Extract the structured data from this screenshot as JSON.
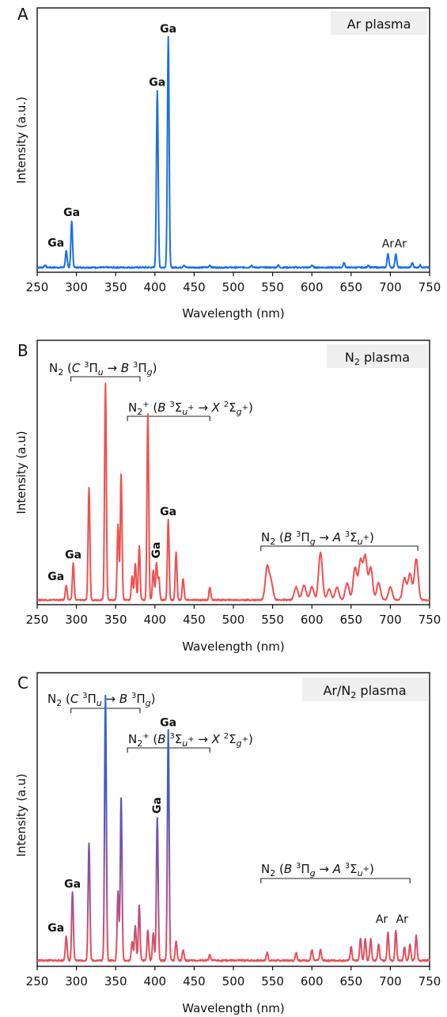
{
  "chart_data": [
    {
      "type": "line",
      "panel_letter": "A",
      "legend_label": "Ar plasma",
      "xlabel": "Wavelength (nm)",
      "ylabel": "Intensity (a.u.)",
      "xlim": [
        250,
        750
      ],
      "xticks": [
        250,
        300,
        350,
        400,
        450,
        500,
        550,
        600,
        650,
        700,
        750
      ],
      "grid": false,
      "series": [
        {
          "color": "#1a6fe8",
          "peaks": [
            [
              260,
              0.01
            ],
            [
              287,
              0.07
            ],
            [
              294,
              0.2
            ],
            [
              403,
              0.76
            ],
            [
              417,
              0.99
            ],
            [
              437,
              0.01
            ],
            [
              470,
              0.01
            ],
            [
              523,
              0.01
            ],
            [
              557,
              0.01
            ],
            [
              600,
              0.01
            ],
            [
              641,
              0.02
            ],
            [
              672,
              0.01
            ],
            [
              697,
              0.06
            ],
            [
              707,
              0.06
            ],
            [
              728,
              0.02
            ],
            [
              738,
              0.01
            ]
          ]
        }
      ],
      "annotations": [
        {
          "text": "Ga",
          "x": 287,
          "bold": true
        },
        {
          "text": "Ga",
          "x": 294,
          "bold": true
        },
        {
          "text": "Ga",
          "x": 403,
          "bold": true
        },
        {
          "text": "Ga",
          "x": 417,
          "bold": true
        },
        {
          "text": "Ar",
          "x": 697,
          "bold": false
        },
        {
          "text": "Ar",
          "x": 713,
          "bold": false
        }
      ]
    },
    {
      "type": "line",
      "panel_letter": "B",
      "legend_label": "N",
      "legend_sub": "2",
      "legend_suffix": " plasma",
      "xlabel": "Wavelength (nm)",
      "ylabel": "Intensity (a.u)",
      "xlim": [
        250,
        750
      ],
      "xticks": [
        250,
        300,
        350,
        400,
        450,
        500,
        550,
        600,
        650,
        700,
        750
      ],
      "grid": false,
      "series": [
        {
          "color": "#f0504f",
          "peaks": [
            [
              287,
              0.07
            ],
            [
              296,
              0.17
            ],
            [
              316,
              0.52
            ],
            [
              337,
              1.0
            ],
            [
              353,
              0.35
            ],
            [
              357,
              0.58
            ],
            [
              371,
              0.11
            ],
            [
              375,
              0.17
            ],
            [
              380,
              0.25
            ],
            [
              391,
              0.86
            ],
            [
              398,
              0.14
            ],
            [
              402,
              0.17
            ],
            [
              405,
              0.1
            ],
            [
              417,
              0.37
            ],
            [
              427,
              0.22
            ],
            [
              436,
              0.1
            ],
            [
              470,
              0.06
            ],
            [
              543,
              0.15
            ],
            [
              548,
              0.08
            ],
            [
              580,
              0.06
            ],
            [
              590,
              0.07
            ],
            [
              600,
              0.06
            ],
            [
              611,
              0.22
            ],
            [
              622,
              0.05
            ],
            [
              632,
              0.06
            ],
            [
              645,
              0.08
            ],
            [
              655,
              0.15
            ],
            [
              662,
              0.18
            ],
            [
              668,
              0.2
            ],
            [
              675,
              0.15
            ],
            [
              685,
              0.08
            ],
            [
              700,
              0.06
            ],
            [
              718,
              0.1
            ],
            [
              725,
              0.12
            ],
            [
              733,
              0.19
            ]
          ]
        }
      ],
      "bands": [
        {
          "x0": 293,
          "x1": 381,
          "label": "N2 (C 3Πu → B 3Πg)"
        },
        {
          "x0": 365,
          "x1": 470,
          "label": "N2+ (B 3Σu+ → X 2Σg+)"
        },
        {
          "x0": 535,
          "x1": 735,
          "label": "N2 (B 3Πg → A 3Σu+)"
        }
      ],
      "annotations": [
        {
          "text": "Ga",
          "x": 287,
          "bold": true
        },
        {
          "text": "Ga",
          "x": 296,
          "bold": true
        },
        {
          "text": "Ga",
          "x": 402,
          "bold": true
        },
        {
          "text": "Ga",
          "x": 417,
          "bold": true
        }
      ]
    },
    {
      "type": "line",
      "panel_letter": "C",
      "legend_label": "Ar/N",
      "legend_sub": "2",
      "legend_suffix": " plasma",
      "xlabel": "Wavelength (nm)",
      "ylabel": "Intensity (a.u)",
      "xlim": [
        250,
        750
      ],
      "xticks": [
        250,
        300,
        350,
        400,
        450,
        500,
        550,
        600,
        650,
        700,
        750
      ],
      "grid": false,
      "series": [
        {
          "color_top": "#1a6fe8",
          "color_bottom": "#f0504f",
          "peaks": [
            [
              287,
              0.09
            ],
            [
              295,
              0.25
            ],
            [
              316,
              0.43
            ],
            [
              337,
              0.97
            ],
            [
              353,
              0.25
            ],
            [
              357,
              0.59
            ],
            [
              371,
              0.07
            ],
            [
              375,
              0.13
            ],
            [
              380,
              0.2
            ],
            [
              391,
              0.11
            ],
            [
              398,
              0.1
            ],
            [
              403,
              0.52
            ],
            [
              417,
              0.84
            ],
            [
              427,
              0.07
            ],
            [
              436,
              0.04
            ],
            [
              470,
              0.02
            ],
            [
              543,
              0.03
            ],
            [
              580,
              0.03
            ],
            [
              600,
              0.04
            ],
            [
              611,
              0.04
            ],
            [
              650,
              0.05
            ],
            [
              662,
              0.08
            ],
            [
              668,
              0.08
            ],
            [
              675,
              0.08
            ],
            [
              685,
              0.06
            ],
            [
              697,
              0.1
            ],
            [
              707,
              0.11
            ],
            [
              718,
              0.05
            ],
            [
              725,
              0.06
            ],
            [
              733,
              0.09
            ]
          ]
        }
      ],
      "bands": [
        {
          "x0": 293,
          "x1": 381,
          "label": "N2 (C 3Πu → B 3Πg)"
        },
        {
          "x0": 365,
          "x1": 470,
          "label": "N2+ (B 3Σu+ → X 2Σg+)"
        },
        {
          "x0": 535,
          "x1": 725,
          "label": "N2 (B 3Πg → A 3Σu+)"
        }
      ],
      "annotations": [
        {
          "text": "Ga",
          "x": 287,
          "bold": true
        },
        {
          "text": "Ga",
          "x": 295,
          "bold": true
        },
        {
          "text": "Ga",
          "x": 403,
          "bold": true
        },
        {
          "text": "Ga",
          "x": 417,
          "bold": true
        },
        {
          "text": "Ar",
          "x": 689,
          "bold": false
        },
        {
          "text": "Ar",
          "x": 715,
          "bold": false
        }
      ]
    }
  ]
}
